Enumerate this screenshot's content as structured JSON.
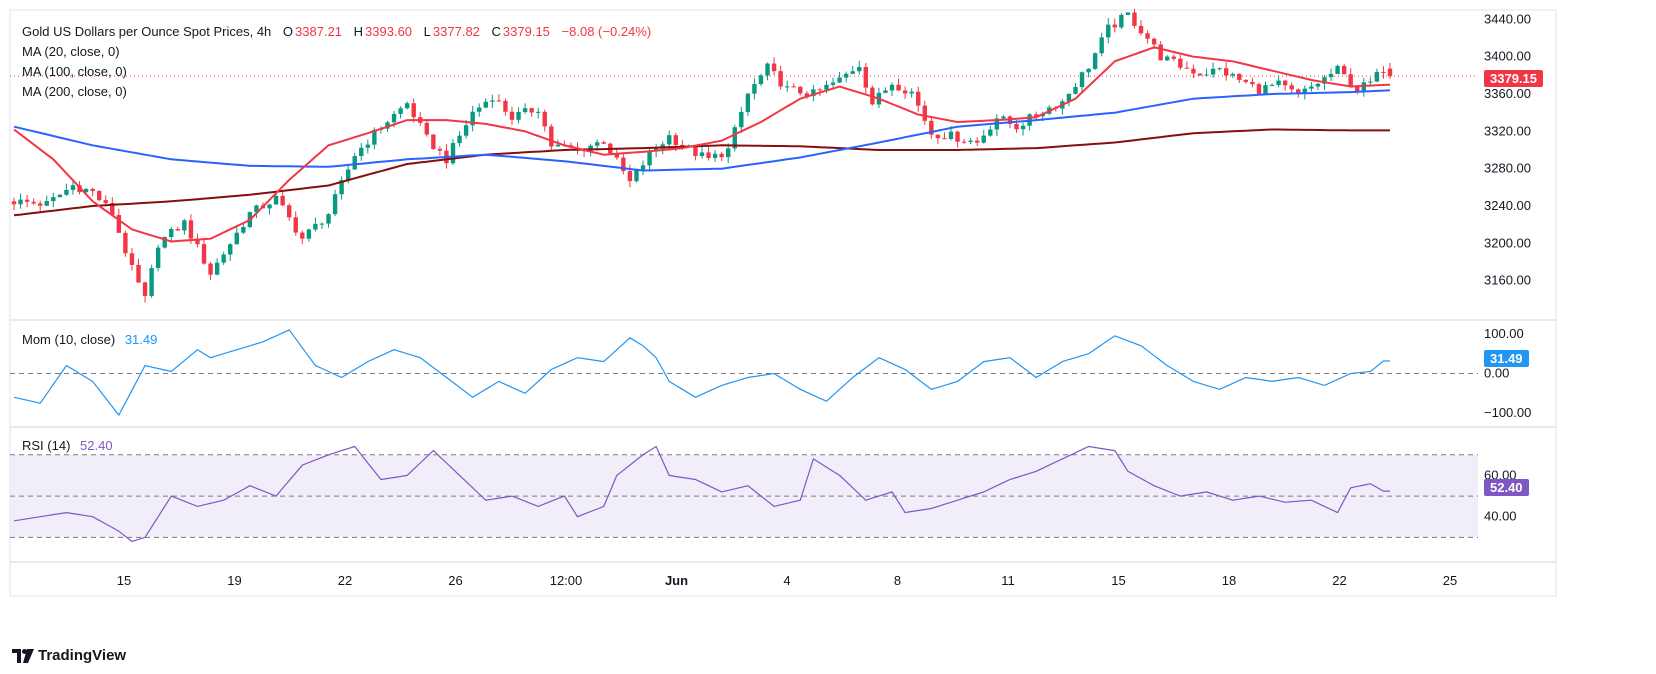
{
  "header": {
    "symbol": "Gold US Dollars per Ounce Spot Prices, 4h",
    "open_label": "O",
    "open": "3387.21",
    "high_label": "H",
    "high": "3393.60",
    "low_label": "L",
    "low": "3377.82",
    "close_label": "C",
    "close": "3379.15",
    "change": "−8.08 (−0.24%)"
  },
  "indicators": {
    "ma20": "MA (20, close, 0)",
    "ma100": "MA (100, close, 0)",
    "ma200": "MA (200, close, 0)",
    "mom_label": "Mom (10, close)",
    "mom_value": "31.49",
    "rsi_label": "RSI (14)",
    "rsi_value": "52.40"
  },
  "price_tag": "3379.15",
  "mom_tag": "31.49",
  "rsi_tag": "52.40",
  "branding": "TradingView",
  "colors": {
    "up": "#089981",
    "down": "#f23645",
    "ma20": "#f23645",
    "ma100": "#2962ff",
    "ma200": "#880e0e",
    "mom": "#2196f3",
    "rsi": "#7e57c2",
    "rsi_band": "#ede7f6"
  },
  "chart_data": [
    {
      "type": "candlestick",
      "title": "Gold US Dollars per Ounce Spot Prices, 4h",
      "ylim": [
        3120,
        3450
      ],
      "yticks": [
        3160,
        3200,
        3240,
        3280,
        3320,
        3360,
        3400,
        3440
      ],
      "xticks": [
        "15",
        "19",
        "22",
        "26",
        "12:00",
        "Jun",
        "4",
        "8",
        "11",
        "15",
        "18",
        "22",
        "25"
      ],
      "last_close": 3379.15,
      "price_anchors": [
        [
          0,
          3245
        ],
        [
          5,
          3242
        ],
        [
          9,
          3262
        ],
        [
          12,
          3255
        ],
        [
          15,
          3232
        ],
        [
          18,
          3172
        ],
        [
          20,
          3140
        ],
        [
          22,
          3200
        ],
        [
          26,
          3222
        ],
        [
          30,
          3168
        ],
        [
          33,
          3200
        ],
        [
          36,
          3232
        ],
        [
          40,
          3248
        ],
        [
          44,
          3205
        ],
        [
          48,
          3232
        ],
        [
          52,
          3295
        ],
        [
          56,
          3325
        ],
        [
          60,
          3350
        ],
        [
          63,
          3312
        ],
        [
          66,
          3290
        ],
        [
          70,
          3340
        ],
        [
          73,
          3358
        ],
        [
          76,
          3335
        ],
        [
          80,
          3345
        ],
        [
          82,
          3305
        ],
        [
          86,
          3300
        ],
        [
          90,
          3310
        ],
        [
          94,
          3265
        ],
        [
          97,
          3295
        ],
        [
          100,
          3315
        ],
        [
          103,
          3300
        ],
        [
          106,
          3290
        ],
        [
          109,
          3300
        ],
        [
          112,
          3360
        ],
        [
          115,
          3388
        ],
        [
          118,
          3365
        ],
        [
          122,
          3360
        ],
        [
          126,
          3375
        ],
        [
          129,
          3392
        ],
        [
          131,
          3350
        ],
        [
          134,
          3372
        ],
        [
          137,
          3362
        ],
        [
          140,
          3318
        ],
        [
          143,
          3315
        ],
        [
          147,
          3308
        ],
        [
          150,
          3335
        ],
        [
          153,
          3325
        ],
        [
          157,
          3342
        ],
        [
          160,
          3352
        ],
        [
          164,
          3390
        ],
        [
          167,
          3430
        ],
        [
          170,
          3445
        ],
        [
          173,
          3420
        ],
        [
          175,
          3400
        ],
        [
          178,
          3390
        ],
        [
          181,
          3382
        ],
        [
          184,
          3386
        ],
        [
          187,
          3375
        ],
        [
          190,
          3365
        ],
        [
          193,
          3370
        ],
        [
          196,
          3358
        ],
        [
          199,
          3372
        ],
        [
          202,
          3386
        ],
        [
          205,
          3365
        ],
        [
          207,
          3372
        ],
        [
          209,
          3387
        ],
        [
          210,
          3379
        ]
      ],
      "ma20": [
        [
          0,
          3322
        ],
        [
          6,
          3290
        ],
        [
          12,
          3245
        ],
        [
          18,
          3215
        ],
        [
          24,
          3202
        ],
        [
          30,
          3205
        ],
        [
          36,
          3225
        ],
        [
          42,
          3268
        ],
        [
          48,
          3305
        ],
        [
          54,
          3318
        ],
        [
          60,
          3332
        ],
        [
          66,
          3332
        ],
        [
          72,
          3328
        ],
        [
          78,
          3320
        ],
        [
          84,
          3305
        ],
        [
          90,
          3295
        ],
        [
          96,
          3298
        ],
        [
          102,
          3302
        ],
        [
          108,
          3310
        ],
        [
          114,
          3330
        ],
        [
          120,
          3355
        ],
        [
          126,
          3368
        ],
        [
          132,
          3355
        ],
        [
          138,
          3338
        ],
        [
          144,
          3330
        ],
        [
          150,
          3332
        ],
        [
          156,
          3335
        ],
        [
          162,
          3355
        ],
        [
          168,
          3395
        ],
        [
          174,
          3410
        ],
        [
          180,
          3400
        ],
        [
          186,
          3395
        ],
        [
          192,
          3385
        ],
        [
          198,
          3375
        ],
        [
          204,
          3368
        ],
        [
          210,
          3370
        ]
      ],
      "ma100": [
        [
          0,
          3325
        ],
        [
          12,
          3305
        ],
        [
          24,
          3290
        ],
        [
          36,
          3283
        ],
        [
          48,
          3282
        ],
        [
          60,
          3290
        ],
        [
          72,
          3295
        ],
        [
          84,
          3288
        ],
        [
          96,
          3278
        ],
        [
          108,
          3280
        ],
        [
          120,
          3292
        ],
        [
          132,
          3308
        ],
        [
          144,
          3325
        ],
        [
          156,
          3332
        ],
        [
          168,
          3340
        ],
        [
          180,
          3355
        ],
        [
          192,
          3360
        ],
        [
          204,
          3362
        ],
        [
          210,
          3364
        ]
      ],
      "ma200": [
        [
          0,
          3230
        ],
        [
          12,
          3240
        ],
        [
          24,
          3245
        ],
        [
          36,
          3252
        ],
        [
          48,
          3262
        ],
        [
          60,
          3285
        ],
        [
          72,
          3295
        ],
        [
          84,
          3300
        ],
        [
          96,
          3302
        ],
        [
          108,
          3305
        ],
        [
          120,
          3304
        ],
        [
          132,
          3300
        ],
        [
          144,
          3300
        ],
        [
          156,
          3302
        ],
        [
          168,
          3308
        ],
        [
          180,
          3318
        ],
        [
          192,
          3322
        ],
        [
          204,
          3321
        ],
        [
          210,
          3321
        ]
      ]
    },
    {
      "type": "line",
      "title": "Mom (10, close)",
      "ylim": [
        -130,
        130
      ],
      "yticks": [
        100,
        0,
        -100
      ],
      "last": 31.49,
      "values_anchors": [
        [
          0,
          -60
        ],
        [
          4,
          -75
        ],
        [
          8,
          20
        ],
        [
          12,
          -20
        ],
        [
          16,
          -105
        ],
        [
          20,
          20
        ],
        [
          24,
          5
        ],
        [
          28,
          60
        ],
        [
          30,
          40
        ],
        [
          34,
          60
        ],
        [
          38,
          80
        ],
        [
          42,
          110
        ],
        [
          46,
          20
        ],
        [
          50,
          -10
        ],
        [
          54,
          30
        ],
        [
          58,
          60
        ],
        [
          62,
          40
        ],
        [
          66,
          -10
        ],
        [
          70,
          -60
        ],
        [
          74,
          -20
        ],
        [
          78,
          -50
        ],
        [
          82,
          10
        ],
        [
          86,
          40
        ],
        [
          90,
          30
        ],
        [
          92,
          60
        ],
        [
          94,
          90
        ],
        [
          96,
          70
        ],
        [
          98,
          40
        ],
        [
          100,
          -20
        ],
        [
          104,
          -60
        ],
        [
          108,
          -30
        ],
        [
          112,
          -10
        ],
        [
          116,
          0
        ],
        [
          120,
          -40
        ],
        [
          124,
          -70
        ],
        [
          128,
          -10
        ],
        [
          132,
          40
        ],
        [
          136,
          10
        ],
        [
          140,
          -40
        ],
        [
          144,
          -20
        ],
        [
          148,
          30
        ],
        [
          152,
          40
        ],
        [
          156,
          -10
        ],
        [
          160,
          30
        ],
        [
          164,
          50
        ],
        [
          168,
          95
        ],
        [
          172,
          70
        ],
        [
          176,
          20
        ],
        [
          180,
          -20
        ],
        [
          184,
          -40
        ],
        [
          188,
          -10
        ],
        [
          192,
          -20
        ],
        [
          196,
          -10
        ],
        [
          200,
          -30
        ],
        [
          204,
          0
        ],
        [
          207,
          5
        ],
        [
          209,
          31.49
        ],
        [
          210,
          31.49
        ]
      ]
    },
    {
      "type": "line",
      "title": "RSI (14)",
      "ylim": [
        20,
        82
      ],
      "yticks": [
        60,
        40
      ],
      "band": [
        30,
        70
      ],
      "last": 52.4,
      "values_anchors": [
        [
          0,
          38
        ],
        [
          4,
          40
        ],
        [
          8,
          42
        ],
        [
          12,
          40
        ],
        [
          16,
          33
        ],
        [
          18,
          28
        ],
        [
          20,
          30
        ],
        [
          24,
          50
        ],
        [
          28,
          45
        ],
        [
          32,
          48
        ],
        [
          36,
          55
        ],
        [
          40,
          50
        ],
        [
          44,
          65
        ],
        [
          48,
          70
        ],
        [
          52,
          74
        ],
        [
          56,
          58
        ],
        [
          60,
          60
        ],
        [
          64,
          72
        ],
        [
          68,
          60
        ],
        [
          72,
          48
        ],
        [
          76,
          50
        ],
        [
          80,
          45
        ],
        [
          84,
          50
        ],
        [
          86,
          40
        ],
        [
          90,
          45
        ],
        [
          92,
          60
        ],
        [
          96,
          70
        ],
        [
          98,
          74
        ],
        [
          100,
          60
        ],
        [
          104,
          58
        ],
        [
          108,
          52
        ],
        [
          112,
          55
        ],
        [
          116,
          45
        ],
        [
          120,
          48
        ],
        [
          122,
          68
        ],
        [
          126,
          60
        ],
        [
          130,
          48
        ],
        [
          134,
          52
        ],
        [
          136,
          42
        ],
        [
          140,
          44
        ],
        [
          144,
          48
        ],
        [
          148,
          52
        ],
        [
          152,
          58
        ],
        [
          156,
          62
        ],
        [
          160,
          68
        ],
        [
          164,
          74
        ],
        [
          168,
          72
        ],
        [
          170,
          62
        ],
        [
          174,
          55
        ],
        [
          178,
          50
        ],
        [
          182,
          52
        ],
        [
          186,
          48
        ],
        [
          190,
          50
        ],
        [
          194,
          47
        ],
        [
          198,
          48
        ],
        [
          202,
          42
        ],
        [
          204,
          54
        ],
        [
          207,
          56
        ],
        [
          209,
          52.4
        ],
        [
          210,
          52.4
        ]
      ]
    }
  ]
}
